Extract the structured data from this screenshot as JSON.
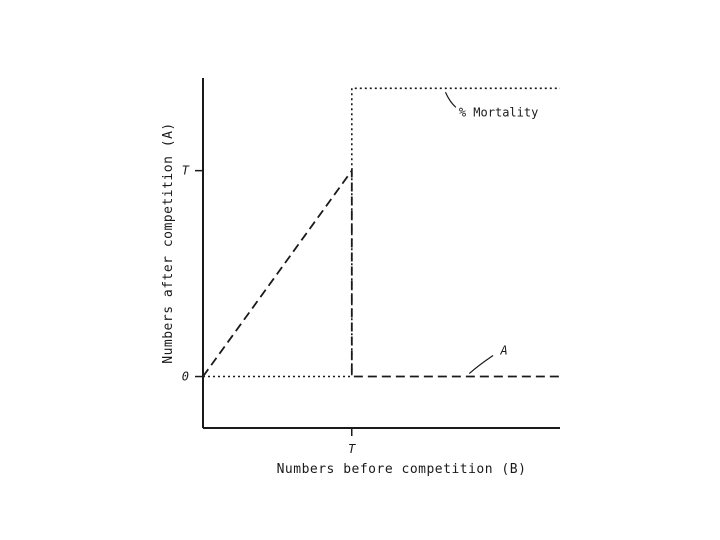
{
  "chart_data": {
    "type": "line",
    "title": "",
    "xlabel": "Numbers before competition (B)",
    "ylabel": "Numbers after competition (A)",
    "xlim": [
      0,
      2.4
    ],
    "ylim": [
      -0.25,
      1.45
    ],
    "x_ticks": [
      {
        "value": 1,
        "label": "T"
      }
    ],
    "y_ticks": [
      {
        "value": 0,
        "label": "0"
      },
      {
        "value": 1,
        "label": "T"
      }
    ],
    "series": [
      {
        "name": "A",
        "style": "dashed",
        "points": [
          [
            0,
            0
          ],
          [
            1,
            1
          ],
          [
            1,
            0
          ],
          [
            2.4,
            0
          ]
        ]
      },
      {
        "name": "% Mortality",
        "style": "dotted",
        "points": [
          [
            0,
            0
          ],
          [
            1,
            0
          ],
          [
            1,
            1.4
          ],
          [
            2.4,
            1.4
          ]
        ]
      }
    ],
    "annotations": [
      {
        "text": "% Mortality",
        "series": "% Mortality"
      },
      {
        "text": "A",
        "series": "A"
      }
    ],
    "colors": {
      "ink": "#1a1a1a",
      "background": "#ffffff"
    }
  }
}
